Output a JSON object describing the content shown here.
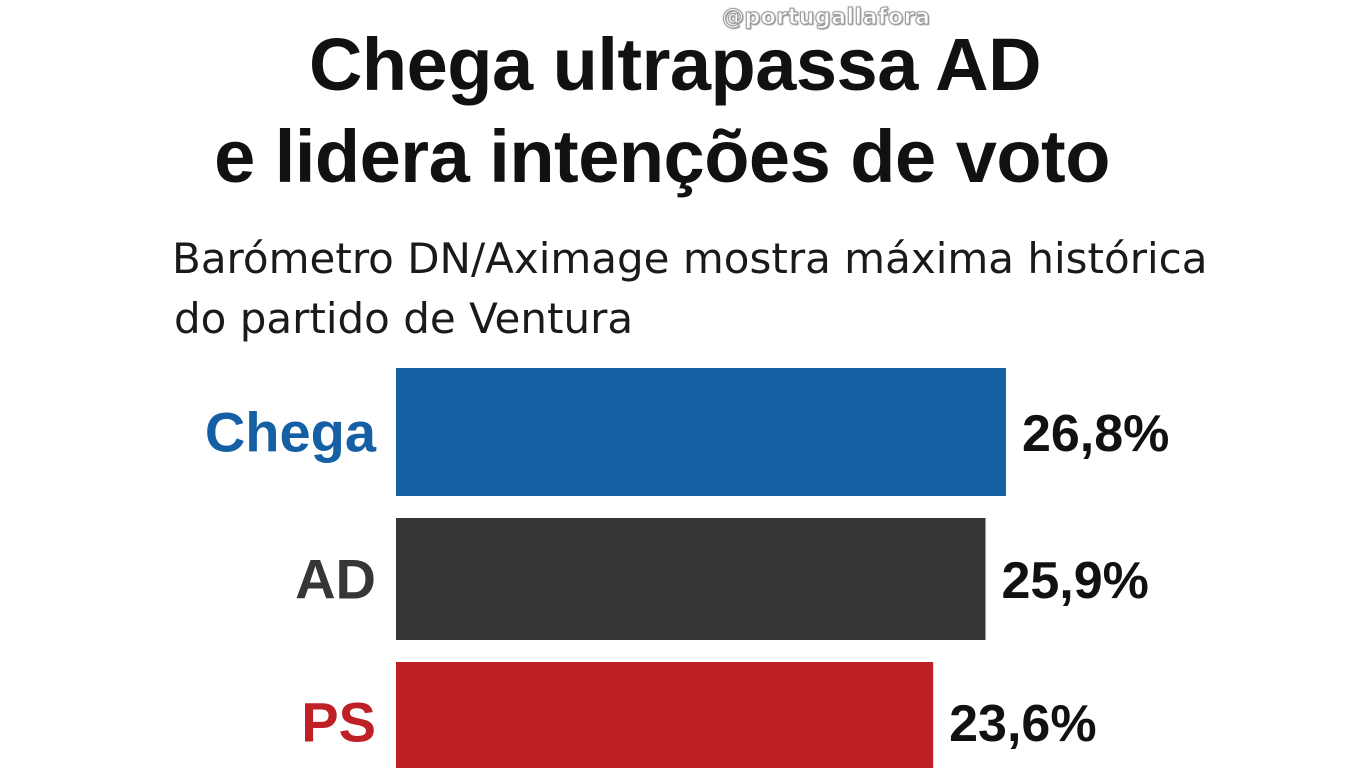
{
  "watermark": "@portugallafora",
  "chart_data": {
    "type": "bar",
    "orientation": "horizontal",
    "title": [
      "Chega ultrapassa AD",
      "e lidera intenções de voto"
    ],
    "subtitle": [
      "Barómetro DN/Aximage mostra máxima histórica",
      "do partido de Ventura"
    ],
    "categories": [
      "Chega",
      "AD",
      "PS"
    ],
    "values": [
      26.8,
      25.9,
      23.6
    ],
    "value_labels": [
      "26,8%",
      "25,9%",
      "23,6%"
    ],
    "colors": [
      "#1560a5",
      "#363636",
      "#bf2026"
    ],
    "label_colors": [
      "#1560a5",
      "#363636",
      "#bf2026"
    ],
    "unit": "%",
    "xlim": [
      0,
      30
    ],
    "grid": false
  }
}
